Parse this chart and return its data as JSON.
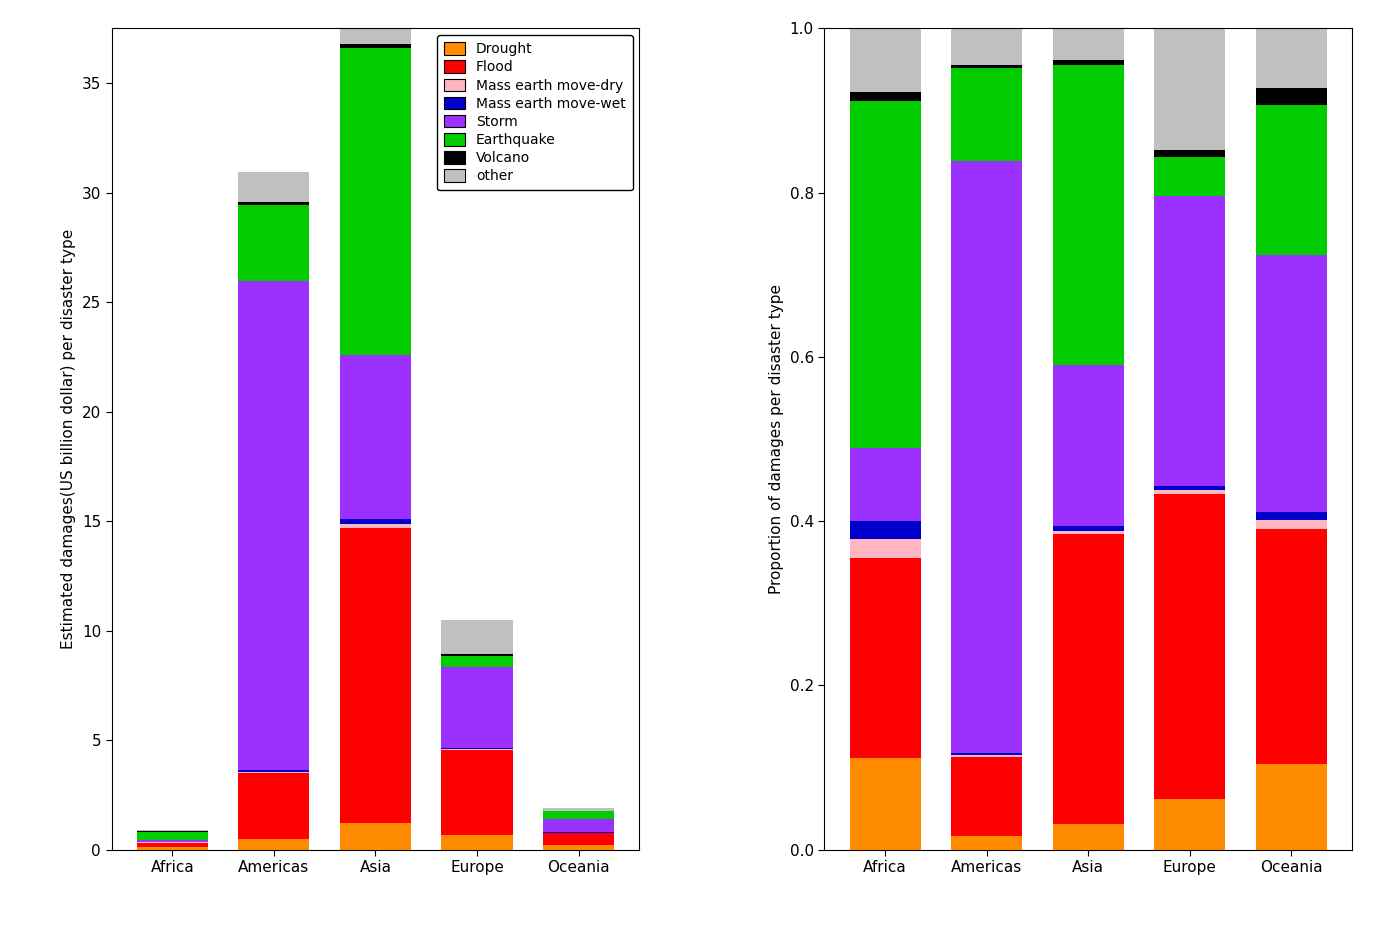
{
  "categories": [
    "Africa",
    "Americas",
    "Asia",
    "Europe",
    "Oceania"
  ],
  "disaster_types": [
    "Drought",
    "Flood",
    "Mass earth move-dry",
    "Mass earth move-wet",
    "Storm",
    "Earthquake",
    "Volcano",
    "other"
  ],
  "colors": [
    "#FF8C00",
    "#FF0000",
    "#FFB6C1",
    "#0000CD",
    "#9B30FF",
    "#00CC00",
    "#000000",
    "#C0C0C0"
  ],
  "abs_values": {
    "Africa": [
      0.1,
      0.22,
      0.02,
      0.02,
      0.08,
      0.38,
      0.01,
      0.07
    ],
    "Americas": [
      0.5,
      3.0,
      0.05,
      0.1,
      22.3,
      3.5,
      0.1,
      1.4
    ],
    "Asia": [
      1.2,
      13.5,
      0.15,
      0.25,
      7.5,
      14.0,
      0.2,
      1.5
    ],
    "Europe": [
      0.65,
      3.9,
      0.05,
      0.05,
      3.7,
      0.5,
      0.1,
      1.55
    ],
    "Oceania": [
      0.2,
      0.55,
      0.02,
      0.02,
      0.6,
      0.35,
      0.04,
      0.14
    ]
  },
  "ylabel_left": "Estimated damages(US billion dollar) per disaster type",
  "ylabel_right": "Proportion of damages per disaster type",
  "ylim_left": [
    0,
    37.5
  ],
  "yticks_left": [
    0,
    5,
    10,
    15,
    20,
    25,
    30,
    35
  ],
  "yticks_right": [
    0.0,
    0.2,
    0.4,
    0.6,
    0.8,
    1.0
  ],
  "background_color": "#FFFFFF"
}
